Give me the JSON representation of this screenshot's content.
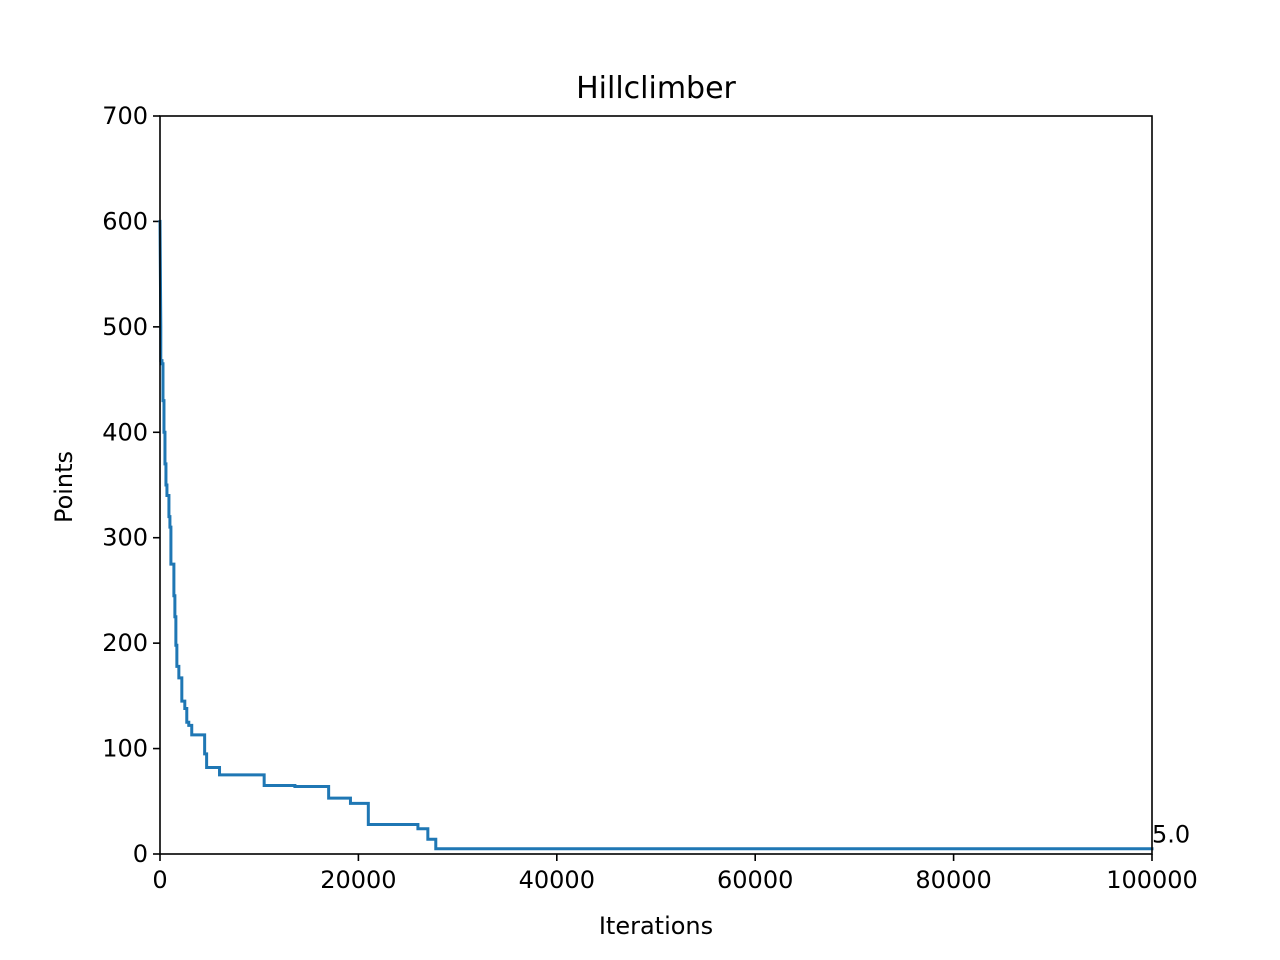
{
  "chart_data": {
    "type": "line",
    "title": "Hillclimber",
    "xlabel": "Iterations",
    "ylabel": "Points",
    "xlim": [
      0,
      100000
    ],
    "ylim": [
      0,
      700
    ],
    "grid": false,
    "x_ticks": [
      0,
      20000,
      40000,
      60000,
      80000,
      100000
    ],
    "x_tick_labels": [
      "0",
      "20000",
      "40000",
      "60000",
      "80000",
      "100000"
    ],
    "y_ticks": [
      0,
      100,
      200,
      300,
      400,
      500,
      600,
      700
    ],
    "y_tick_labels": [
      "0",
      "100",
      "200",
      "300",
      "400",
      "500",
      "600",
      "700"
    ],
    "color": "#1f77b4",
    "series": [
      {
        "x": [
          0,
          0,
          80,
          80,
          200,
          200,
          300,
          300,
          400,
          400,
          500,
          500,
          600,
          600,
          700,
          700,
          900,
          900,
          1000,
          1000,
          1100,
          1100,
          1400,
          1400,
          1500,
          1500,
          1600,
          1600,
          1700,
          1700,
          1900,
          1900,
          2200,
          2200,
          2500,
          2500,
          2700,
          2700,
          2900,
          2900,
          3200,
          3200,
          4500,
          4500,
          4700,
          4700,
          6000,
          6000,
          10500,
          10500,
          13600,
          13600,
          17000,
          17000,
          19200,
          19200,
          21000,
          21000,
          26000,
          26000,
          27000,
          27000,
          27800,
          27800,
          100000
        ],
        "y": [
          600,
          600,
          500,
          468,
          468,
          465,
          465,
          430,
          430,
          400,
          400,
          370,
          370,
          350,
          350,
          340,
          340,
          320,
          320,
          310,
          310,
          275,
          275,
          245,
          245,
          225,
          225,
          198,
          198,
          178,
          178,
          167,
          167,
          145,
          145,
          138,
          138,
          125,
          125,
          122,
          122,
          113,
          113,
          95,
          95,
          82,
          82,
          75,
          75,
          65,
          65,
          64,
          64,
          53,
          53,
          48,
          48,
          28,
          28,
          24,
          24,
          14,
          14,
          5,
          5
        ]
      }
    ],
    "annotations": [
      {
        "text": "5.0",
        "x": 100000,
        "y": 5
      }
    ]
  }
}
